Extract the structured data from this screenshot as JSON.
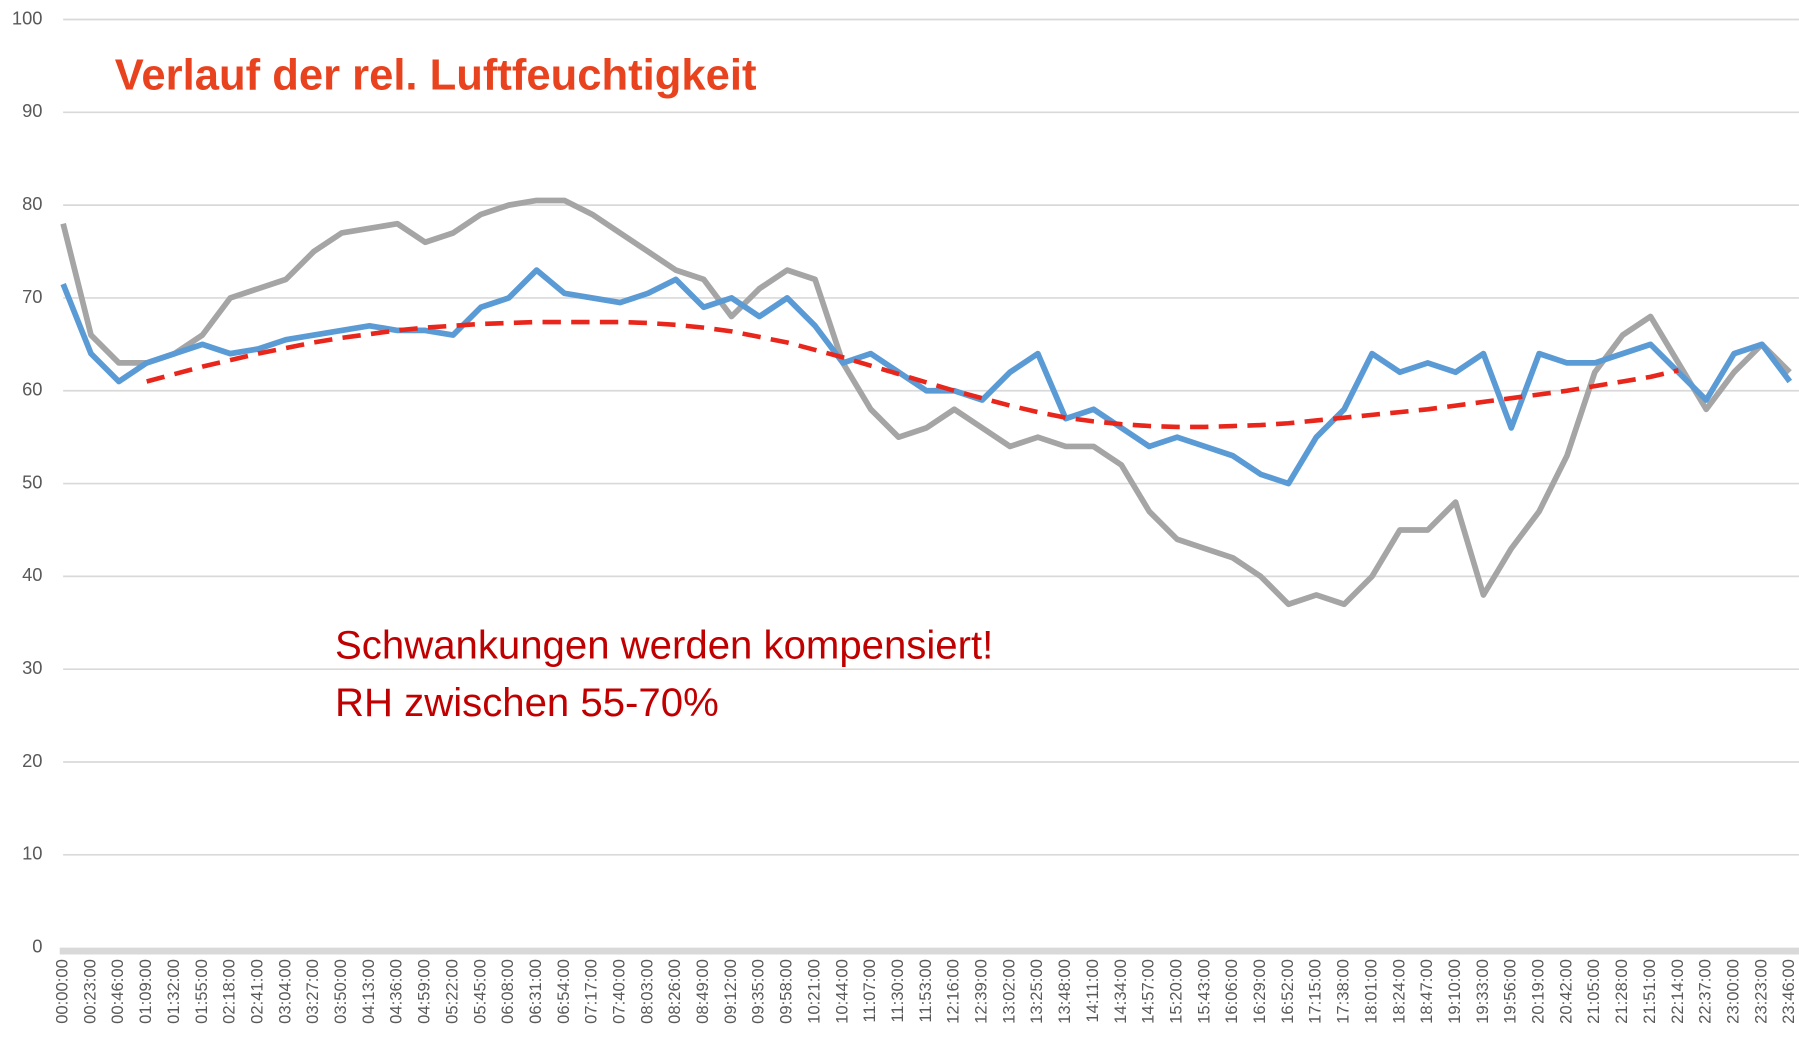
{
  "chart_data": {
    "type": "line",
    "title": "Verlauf der rel. Luftfeuchtigkeit",
    "title_color": "#e8431e",
    "annotations": [
      "Schwankungen werden kompensiert!",
      "RH zwischen 55-70%"
    ],
    "annotation_color": "#c00000",
    "categories": [
      "00:00:00",
      "00:23:00",
      "00:46:00",
      "01:09:00",
      "01:32:00",
      "01:55:00",
      "02:18:00",
      "02:41:00",
      "03:04:00",
      "03:27:00",
      "03:50:00",
      "04:13:00",
      "04:36:00",
      "04:59:00",
      "05:22:00",
      "05:45:00",
      "06:08:00",
      "06:31:00",
      "06:54:00",
      "07:17:00",
      "07:40:00",
      "08:03:00",
      "08:26:00",
      "08:49:00",
      "09:12:00",
      "09:35:00",
      "09:58:00",
      "10:21:00",
      "10:44:00",
      "11:07:00",
      "11:30:00",
      "11:53:00",
      "12:16:00",
      "12:39:00",
      "13:02:00",
      "13:25:00",
      "13:48:00",
      "14:11:00",
      "14:34:00",
      "14:57:00",
      "15:20:00",
      "15:43:00",
      "16:06:00",
      "16:29:00",
      "16:52:00",
      "17:15:00",
      "17:38:00",
      "18:01:00",
      "18:24:00",
      "18:47:00",
      "19:10:00",
      "19:33:00",
      "19:56:00",
      "20:19:00",
      "20:42:00",
      "21:05:00",
      "21:28:00",
      "21:51:00",
      "22:14:00",
      "22:37:00",
      "23:00:00",
      "23:23:00",
      "23:46:00"
    ],
    "series": [
      {
        "color": "#a5a5a5",
        "values": [
          78,
          66,
          63,
          63,
          64,
          66,
          70,
          71,
          72,
          75,
          77,
          77.5,
          78,
          76,
          77,
          79,
          80,
          80.5,
          80.5,
          79,
          77,
          75,
          73,
          72,
          68,
          71,
          73,
          72,
          63,
          58,
          55,
          56,
          58,
          56,
          54,
          55,
          54,
          54,
          52,
          47,
          44,
          43,
          42,
          40,
          37,
          38,
          37,
          40,
          45,
          45,
          48,
          38,
          43,
          47,
          53,
          62,
          66,
          68,
          63,
          58,
          62,
          65,
          62
        ]
      },
      {
        "color": "#5b9bd5",
        "values": [
          71.5,
          64,
          61,
          63,
          64,
          65,
          64,
          64.5,
          65.5,
          66,
          66.5,
          67,
          66.5,
          66.5,
          66,
          69,
          70,
          73,
          70.5,
          70,
          69.5,
          70.5,
          72,
          69,
          70,
          68,
          70,
          67,
          63,
          64,
          62,
          60,
          60,
          59,
          62,
          64,
          57,
          58,
          56,
          54,
          55,
          54,
          53,
          51,
          50,
          55,
          58,
          64,
          62,
          63,
          62,
          64,
          56,
          64,
          63,
          63,
          64,
          65,
          62,
          59,
          64,
          65,
          61
        ]
      },
      {
        "color": "#e8261c",
        "dashed": true,
        "values": [
          null,
          null,
          null,
          61,
          61.8,
          62.6,
          63.3,
          64,
          64.6,
          65.2,
          65.7,
          66.1,
          66.5,
          66.8,
          67,
          67.2,
          67.3,
          67.4,
          67.4,
          67.4,
          67.4,
          67.3,
          67.1,
          66.8,
          66.4,
          65.8,
          65.2,
          64.4,
          63.6,
          62.7,
          61.8,
          60.9,
          60,
          59.2,
          58.4,
          57.7,
          57.1,
          56.7,
          56.4,
          56.2,
          56.1,
          56.1,
          56.2,
          56.3,
          56.5,
          56.8,
          57.1,
          57.4,
          57.7,
          58,
          58.4,
          58.8,
          59.2,
          59.6,
          60,
          60.5,
          61,
          61.5,
          62.2,
          null,
          null,
          null,
          null
        ]
      }
    ],
    "ylim": [
      0,
      100
    ],
    "yticks": [
      0,
      10,
      20,
      30,
      40,
      50,
      60,
      70,
      80,
      90,
      100
    ],
    "grid": true
  }
}
